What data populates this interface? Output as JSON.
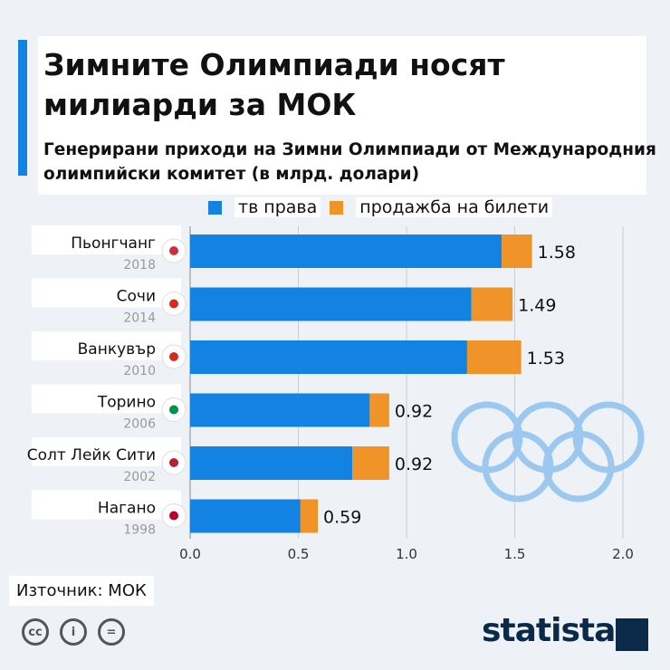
{
  "title": "Зимните Олимпиади носят милиарди за МОК",
  "subtitle": "Генерирани приходи на Зимни Олимпиади от Международния олимпийски комитет (в млрд. долари)",
  "source": "Източник: МОК",
  "brand": "statista",
  "colors": {
    "tv": "#1283e2",
    "tickets": "#f0942a"
  },
  "chart_data": {
    "type": "bar",
    "orientation": "horizontal",
    "stacked": true,
    "categories": [
      "Пьонгчанг",
      "Сочи",
      "Ванкувър",
      "Торино",
      "Солт Лейк Сити",
      "Нагано"
    ],
    "years": [
      "2018",
      "2014",
      "2010",
      "2006",
      "2002",
      "1998"
    ],
    "flags": [
      "south-korea-flag",
      "russia-flag",
      "canada-flag",
      "italy-flag",
      "usa-flag",
      "japan-flag"
    ],
    "series": [
      {
        "name": "тв права",
        "values": [
          1.44,
          1.3,
          1.28,
          0.83,
          0.75,
          0.51
        ]
      },
      {
        "name": "продажба на билети",
        "values": [
          0.14,
          0.19,
          0.25,
          0.09,
          0.17,
          0.08
        ]
      }
    ],
    "totals": [
      "1.58",
      "1.49",
      "1.53",
      "0.92",
      "0.92",
      "0.59"
    ],
    "xticks": [
      "0.0",
      "0.5",
      "1.0",
      "1.5",
      "2.0"
    ],
    "xlim": [
      0,
      2.0
    ],
    "grid": true,
    "legend": "top"
  }
}
